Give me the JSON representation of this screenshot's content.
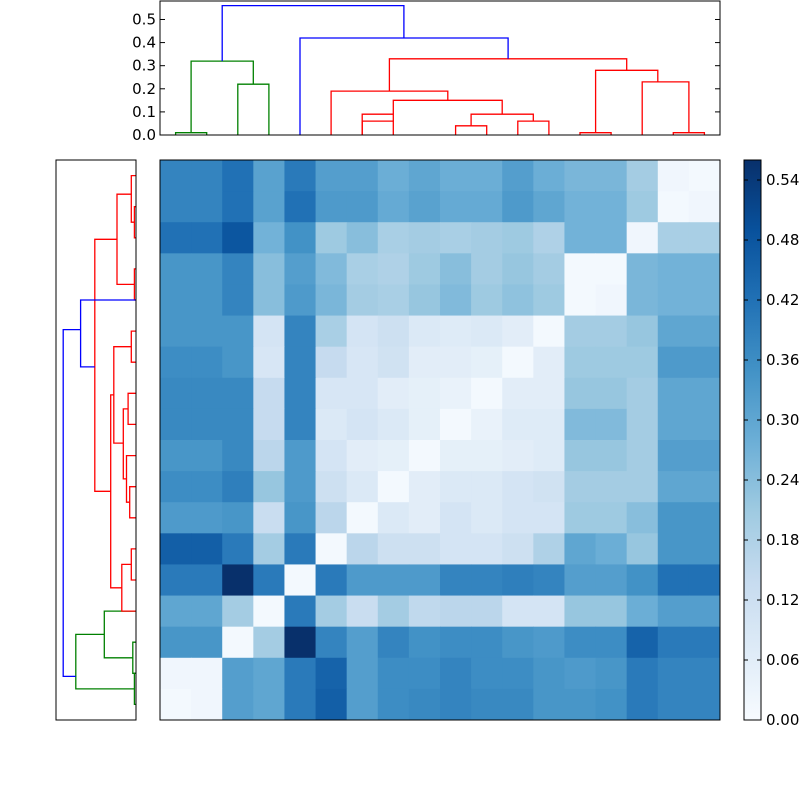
{
  "chart_data": [
    {
      "type": "dendrogram",
      "orientation": "top",
      "ylim": [
        0.0,
        0.58
      ],
      "yticks": [
        "0.0",
        "0.1",
        "0.2",
        "0.3",
        "0.4",
        "0.5"
      ],
      "leaf_positions": [
        0.5,
        1.5,
        2.5,
        3.5,
        4.5,
        5.5,
        6.5,
        7.5,
        8.5,
        9.5,
        10.5,
        11.5,
        12.5,
        13.5,
        14.5,
        15.5,
        16.5,
        17.5
      ],
      "links": [
        {
          "x": [
            0.5,
            0.5,
            1.5,
            1.5
          ],
          "y": [
            0.0,
            0.01,
            0.01,
            0.0
          ],
          "color": "#008000"
        },
        {
          "x": [
            2.5,
            2.5,
            3.5,
            3.5
          ],
          "y": [
            0.0,
            0.22,
            0.22,
            0.0
          ],
          "color": "#008000"
        },
        {
          "x": [
            1.0,
            1.0,
            3.0,
            3.0
          ],
          "y": [
            0.01,
            0.32,
            0.32,
            0.22
          ],
          "color": "#008000"
        },
        {
          "x": [
            6.5,
            6.5,
            7.5,
            7.5
          ],
          "y": [
            0.0,
            0.06,
            0.06,
            0.0
          ],
          "color": "#ff0000"
        },
        {
          "x": [
            6.5,
            6.5,
            7.5,
            7.5
          ],
          "y": [
            0.0,
            0.09,
            0.09,
            0.06
          ],
          "color": "#ff0000"
        },
        {
          "x": [
            9.5,
            9.5,
            10.5,
            10.5
          ],
          "y": [
            0.0,
            0.04,
            0.04,
            0.0
          ],
          "color": "#ff0000"
        },
        {
          "x": [
            11.5,
            11.5,
            12.5,
            12.5
          ],
          "y": [
            0.0,
            0.06,
            0.06,
            0.0
          ],
          "color": "#ff0000"
        },
        {
          "x": [
            10.0,
            10.0,
            12.0,
            12.0
          ],
          "y": [
            0.04,
            0.09,
            0.09,
            0.06
          ],
          "color": "#ff0000"
        },
        {
          "x": [
            7.5,
            7.5,
            11.0,
            11.0
          ],
          "y": [
            0.09,
            0.15,
            0.15,
            0.09
          ],
          "color": "#ff0000"
        },
        {
          "x": [
            5.5,
            5.5,
            9.25,
            9.25
          ],
          "y": [
            0.0,
            0.19,
            0.19,
            0.15
          ],
          "color": "#ff0000"
        },
        {
          "x": [
            13.5,
            13.5,
            14.5,
            14.5
          ],
          "y": [
            0.0,
            0.01,
            0.01,
            0.0
          ],
          "color": "#ff0000"
        },
        {
          "x": [
            15.5,
            15.5,
            17.0,
            17.0
          ],
          "y": [
            0.0,
            0.23,
            0.23,
            0.01
          ],
          "color": "#ff0000"
        },
        {
          "x": [
            16.5,
            16.5,
            17.5,
            17.5
          ],
          "y": [
            0.0,
            0.01,
            0.01,
            0.0
          ],
          "color": "#ff0000"
        },
        {
          "x": [
            14.0,
            14.0,
            16.0,
            16.0
          ],
          "y": [
            0.01,
            0.28,
            0.28,
            0.23
          ],
          "color": "#ff0000"
        },
        {
          "x": [
            7.375,
            7.375,
            15.0,
            15.0
          ],
          "y": [
            0.19,
            0.33,
            0.33,
            0.28
          ],
          "color": "#ff0000"
        },
        {
          "x": [
            4.5,
            4.5,
            11.19,
            11.19
          ],
          "y": [
            0.0,
            0.42,
            0.42,
            0.33
          ],
          "color": "#0000ff"
        },
        {
          "x": [
            2.0,
            2.0,
            7.84,
            7.84
          ],
          "y": [
            0.32,
            0.56,
            0.56,
            0.42
          ],
          "color": "#0000ff"
        }
      ]
    },
    {
      "type": "dendrogram",
      "orientation": "left",
      "leaf_count": 18,
      "links": [
        {
          "leaf": [
            0.5,
            0.5,
            1.5,
            1.5
          ],
          "h": [
            0.0,
            0.01,
            0.01,
            0.0
          ],
          "color": "#008000"
        },
        {
          "leaf": [
            1.5,
            1.5,
            2.5,
            2.5
          ],
          "h": [
            0.0,
            0.02,
            0.02,
            0.0
          ],
          "color": "#008000"
        },
        {
          "leaf": [
            2.0,
            2.0,
            3.5,
            3.5
          ],
          "h": [
            0.02,
            0.2,
            0.2,
            0.0
          ],
          "color": "#008000"
        },
        {
          "leaf": [
            1.0,
            1.0,
            2.75,
            2.75
          ],
          "h": [
            0.01,
            0.38,
            0.38,
            0.2
          ],
          "color": "#008000"
        },
        {
          "leaf": [
            4.5,
            4.5,
            5.5,
            5.5
          ],
          "h": [
            0.0,
            0.03,
            0.03,
            0.0
          ],
          "color": "#ff0000"
        },
        {
          "leaf": [
            3.5,
            3.5,
            5.0,
            5.0
          ],
          "h": [
            0.0,
            0.09,
            0.09,
            0.03
          ],
          "color": "#ff0000"
        },
        {
          "leaf": [
            6.5,
            6.5,
            7.5,
            7.5
          ],
          "h": [
            0.0,
            0.04,
            0.04,
            0.0
          ],
          "color": "#ff0000"
        },
        {
          "leaf": [
            7.0,
            7.0,
            8.5,
            8.5
          ],
          "h": [
            0.04,
            0.06,
            0.06,
            0.0
          ],
          "color": "#ff0000"
        },
        {
          "leaf": [
            9.5,
            9.5,
            10.5,
            10.5
          ],
          "h": [
            0.0,
            0.05,
            0.05,
            0.0
          ],
          "color": "#ff0000"
        },
        {
          "leaf": [
            7.75,
            7.75,
            10.0,
            10.0
          ],
          "h": [
            0.06,
            0.08,
            0.08,
            0.05
          ],
          "color": "#ff0000"
        },
        {
          "leaf": [
            11.5,
            11.5,
            12.5,
            12.5
          ],
          "h": [
            0.0,
            0.03,
            0.03,
            0.0
          ],
          "color": "#ff0000"
        },
        {
          "leaf": [
            8.9,
            8.9,
            12.0,
            12.0
          ],
          "h": [
            0.08,
            0.14,
            0.14,
            0.03
          ],
          "color": "#ff0000"
        },
        {
          "leaf": [
            4.25,
            4.25,
            10.45,
            10.45
          ],
          "h": [
            0.09,
            0.16,
            0.16,
            0.14
          ],
          "color": "#ff0000"
        },
        {
          "leaf": [
            13.5,
            13.5,
            14.5,
            14.5
          ],
          "h": [
            0.0,
            0.01,
            0.01,
            0.0
          ],
          "color": "#ff0000"
        },
        {
          "leaf": [
            15.5,
            15.5,
            16.5,
            16.5
          ],
          "h": [
            0.0,
            0.01,
            0.01,
            0.0
          ],
          "color": "#ff0000"
        },
        {
          "leaf": [
            16.0,
            16.0,
            17.5,
            17.5
          ],
          "h": [
            0.01,
            0.03,
            0.03,
            0.0
          ],
          "color": "#ff0000"
        },
        {
          "leaf": [
            14.0,
            14.0,
            16.9,
            16.9
          ],
          "h": [
            0.01,
            0.12,
            0.12,
            0.03
          ],
          "color": "#ff0000"
        },
        {
          "leaf": [
            7.35,
            7.35,
            15.45,
            15.45
          ],
          "h": [
            0.16,
            0.26,
            0.26,
            0.12
          ],
          "color": "#ff0000"
        },
        {
          "leaf": [
            11.35,
            11.35,
            13.5,
            13.5
          ],
          "h": [
            0.26,
            0.35,
            0.35,
            0.0
          ],
          "color": "#0000ff"
        },
        {
          "leaf": [
            1.4,
            1.4,
            12.55,
            12.55
          ],
          "h": [
            0.38,
            0.46,
            0.46,
            0.35
          ],
          "color": "#0000ff"
        }
      ]
    },
    {
      "type": "heatmap",
      "colormap": "Blues",
      "vmin": 0.0,
      "vmax": 0.56,
      "colorbar_ticks": [
        "0.00",
        "0.06",
        "0.12",
        "0.18",
        "0.24",
        "0.30",
        "0.36",
        "0.42",
        "0.48",
        "0.54"
      ],
      "matrix": [
        [
          0.38,
          0.38,
          0.42,
          0.31,
          0.4,
          0.32,
          0.32,
          0.28,
          0.3,
          0.28,
          0.28,
          0.32,
          0.28,
          0.26,
          0.26,
          0.2,
          0.02,
          0.01
        ],
        [
          0.38,
          0.38,
          0.42,
          0.31,
          0.42,
          0.33,
          0.33,
          0.29,
          0.31,
          0.29,
          0.29,
          0.33,
          0.3,
          0.27,
          0.27,
          0.21,
          0.01,
          0.02
        ],
        [
          0.42,
          0.42,
          0.48,
          0.27,
          0.35,
          0.21,
          0.24,
          0.19,
          0.2,
          0.19,
          0.2,
          0.21,
          0.18,
          0.27,
          0.27,
          0.02,
          0.19,
          0.19
        ],
        [
          0.34,
          0.34,
          0.38,
          0.24,
          0.32,
          0.25,
          0.19,
          0.18,
          0.21,
          0.24,
          0.2,
          0.22,
          0.2,
          0.01,
          0.01,
          0.26,
          0.27,
          0.27
        ],
        [
          0.34,
          0.34,
          0.38,
          0.24,
          0.33,
          0.26,
          0.2,
          0.19,
          0.22,
          0.25,
          0.21,
          0.23,
          0.21,
          0.01,
          0.02,
          0.26,
          0.27,
          0.27
        ],
        [
          0.34,
          0.34,
          0.34,
          0.1,
          0.38,
          0.19,
          0.1,
          0.12,
          0.08,
          0.07,
          0.08,
          0.06,
          0.01,
          0.2,
          0.2,
          0.22,
          0.3,
          0.3
        ],
        [
          0.36,
          0.36,
          0.34,
          0.09,
          0.38,
          0.14,
          0.09,
          0.11,
          0.06,
          0.06,
          0.05,
          0.01,
          0.06,
          0.21,
          0.21,
          0.21,
          0.33,
          0.33
        ],
        [
          0.37,
          0.37,
          0.37,
          0.14,
          0.38,
          0.09,
          0.09,
          0.06,
          0.05,
          0.04,
          0.01,
          0.06,
          0.06,
          0.22,
          0.22,
          0.2,
          0.3,
          0.3
        ],
        [
          0.37,
          0.37,
          0.37,
          0.14,
          0.38,
          0.08,
          0.1,
          0.08,
          0.05,
          0.01,
          0.04,
          0.07,
          0.07,
          0.25,
          0.25,
          0.2,
          0.3,
          0.3
        ],
        [
          0.34,
          0.34,
          0.37,
          0.16,
          0.33,
          0.1,
          0.06,
          0.05,
          0.01,
          0.05,
          0.05,
          0.06,
          0.07,
          0.22,
          0.22,
          0.2,
          0.32,
          0.32
        ],
        [
          0.36,
          0.36,
          0.39,
          0.22,
          0.33,
          0.12,
          0.08,
          0.01,
          0.06,
          0.08,
          0.08,
          0.1,
          0.11,
          0.2,
          0.2,
          0.2,
          0.3,
          0.3
        ],
        [
          0.33,
          0.33,
          0.34,
          0.13,
          0.34,
          0.16,
          0.01,
          0.08,
          0.06,
          0.1,
          0.08,
          0.1,
          0.1,
          0.21,
          0.21,
          0.24,
          0.34,
          0.34
        ],
        [
          0.46,
          0.46,
          0.4,
          0.2,
          0.4,
          0.01,
          0.16,
          0.12,
          0.12,
          0.1,
          0.1,
          0.12,
          0.18,
          0.3,
          0.28,
          0.22,
          0.34,
          0.34
        ],
        [
          0.4,
          0.4,
          0.56,
          0.4,
          0.01,
          0.4,
          0.33,
          0.33,
          0.33,
          0.38,
          0.38,
          0.39,
          0.38,
          0.32,
          0.32,
          0.35,
          0.42,
          0.42
        ],
        [
          0.3,
          0.3,
          0.2,
          0.01,
          0.4,
          0.2,
          0.13,
          0.2,
          0.15,
          0.16,
          0.16,
          0.1,
          0.1,
          0.22,
          0.22,
          0.28,
          0.32,
          0.32
        ],
        [
          0.34,
          0.34,
          0.01,
          0.2,
          0.56,
          0.38,
          0.32,
          0.38,
          0.35,
          0.36,
          0.36,
          0.34,
          0.33,
          0.36,
          0.36,
          0.45,
          0.4,
          0.4
        ],
        [
          0.02,
          0.02,
          0.32,
          0.3,
          0.4,
          0.45,
          0.32,
          0.36,
          0.36,
          0.38,
          0.36,
          0.36,
          0.34,
          0.33,
          0.34,
          0.4,
          0.38,
          0.38
        ],
        [
          0.01,
          0.02,
          0.32,
          0.3,
          0.4,
          0.46,
          0.32,
          0.36,
          0.37,
          0.38,
          0.37,
          0.37,
          0.34,
          0.34,
          0.35,
          0.4,
          0.38,
          0.38
        ]
      ]
    }
  ]
}
